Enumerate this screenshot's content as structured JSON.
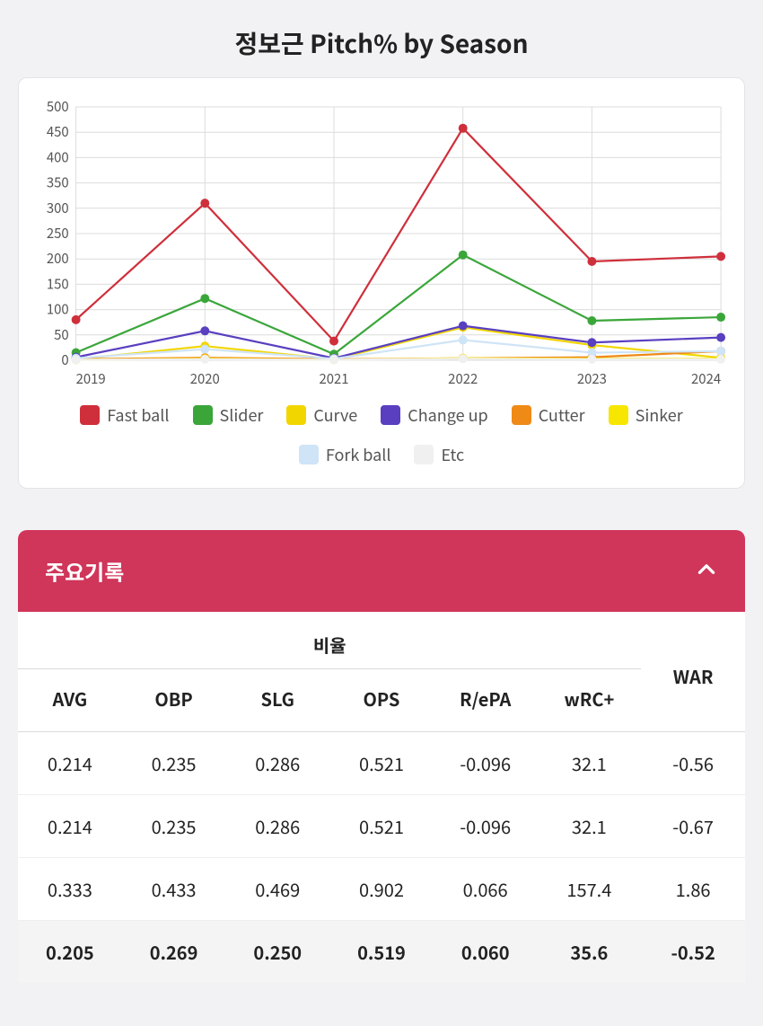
{
  "chart": {
    "title": "정보근 Pitch% by Season",
    "type": "line",
    "xlabels": [
      "2019",
      "2020",
      "2021",
      "2022",
      "2023",
      "2024"
    ],
    "ylim": [
      0,
      500
    ],
    "ytick_step": 50,
    "grid_color": "#dcdcdc",
    "background_color": "#ffffff",
    "axis_fontsize": 15,
    "marker_radius": 5,
    "line_width": 2.2,
    "series": [
      {
        "name": "Fast ball",
        "color": "#cf2f3b",
        "values": [
          80,
          310,
          38,
          458,
          195,
          205
        ]
      },
      {
        "name": "Slider",
        "color": "#3aa63a",
        "values": [
          15,
          122,
          12,
          208,
          78,
          85
        ]
      },
      {
        "name": "Curve",
        "color": "#f2d600",
        "values": [
          2,
          28,
          2,
          65,
          30,
          5
        ]
      },
      {
        "name": "Change up",
        "color": "#5a3fc0",
        "values": [
          6,
          58,
          4,
          68,
          35,
          45
        ]
      },
      {
        "name": "Cutter",
        "color": "#ef8a17",
        "values": [
          2,
          5,
          2,
          4,
          6,
          18
        ]
      },
      {
        "name": "Sinker",
        "color": "#f7e600",
        "values": [
          1,
          3,
          1,
          4,
          3,
          3
        ]
      },
      {
        "name": "Fork ball",
        "color": "#cfe4f7",
        "values": [
          4,
          22,
          3,
          40,
          15,
          18
        ]
      },
      {
        "name": "Etc",
        "color": "#f0f0f0",
        "values": [
          1,
          2,
          1,
          3,
          2,
          2
        ]
      }
    ]
  },
  "panel": {
    "title": "주요기록",
    "group_label": "비율",
    "war_label": "WAR",
    "columns": [
      "AVG",
      "OBP",
      "SLG",
      "OPS",
      "R/ePA",
      "wRC+"
    ],
    "rows": [
      [
        "0.214",
        "0.235",
        "0.286",
        "0.521",
        "-0.096",
        "32.1",
        "-0.56"
      ],
      [
        "0.214",
        "0.235",
        "0.286",
        "0.521",
        "-0.096",
        "32.1",
        "-0.67"
      ],
      [
        "0.333",
        "0.433",
        "0.469",
        "0.902",
        "0.066",
        "157.4",
        "1.86"
      ],
      [
        "0.205",
        "0.269",
        "0.250",
        "0.519",
        "0.060",
        "35.6",
        "-0.52"
      ]
    ],
    "header_bg": "#d0355a",
    "header_fg": "#ffffff"
  }
}
